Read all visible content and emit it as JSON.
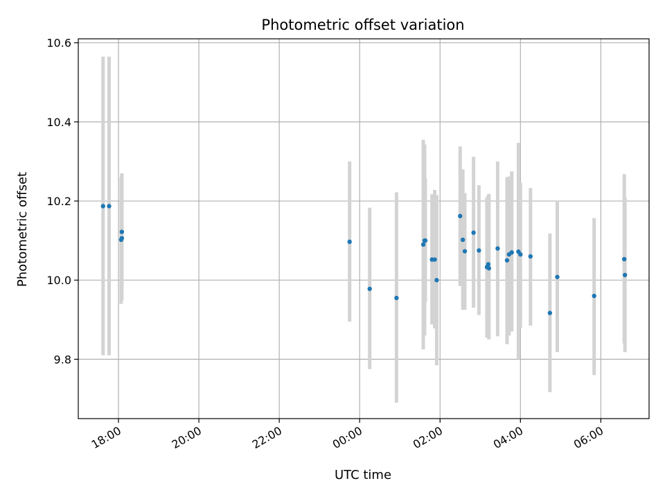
{
  "chart_data": {
    "type": "scatter",
    "title": "Photometric offset variation",
    "xlabel": "UTC time",
    "ylabel": "Photometric offset",
    "xlim": [
      "17:00",
      "07:12"
    ],
    "ylim": [
      9.65,
      10.61
    ],
    "x_ticks": [
      "18:00",
      "20:00",
      "22:00",
      "00:00",
      "02:00",
      "04:00",
      "06:00"
    ],
    "y_ticks": [
      "9.8",
      "10.0",
      "10.2",
      "10.4",
      "10.6"
    ],
    "grid": true,
    "x_tick_rotation": 30,
    "colors": {
      "point": "#1f77b4",
      "errorbar": "#d3d3d3",
      "grid": "#b0b0b0"
    },
    "points": [
      {
        "x": "17:37",
        "y": 10.187,
        "ylow": 9.81,
        "yhigh": 10.565
      },
      {
        "x": "17:46",
        "y": 10.187,
        "ylow": 9.81,
        "yhigh": 10.565
      },
      {
        "x": "18:04",
        "y": 10.102,
        "ylow": 9.94,
        "yhigh": 10.26
      },
      {
        "x": "18:05",
        "y": 10.122,
        "ylow": 9.97,
        "yhigh": 10.27
      },
      {
        "x": "18:05",
        "y": 10.106,
        "ylow": 9.95,
        "yhigh": 10.27
      },
      {
        "x": "23:45",
        "y": 10.097,
        "ylow": 9.895,
        "yhigh": 10.3
      },
      {
        "x": "00:15",
        "y": 9.978,
        "ylow": 9.775,
        "yhigh": 10.183
      },
      {
        "x": "00:55",
        "y": 9.955,
        "ylow": 9.69,
        "yhigh": 10.222
      },
      {
        "x": "01:35",
        "y": 10.09,
        "ylow": 9.825,
        "yhigh": 10.355
      },
      {
        "x": "01:37",
        "y": 10.1,
        "ylow": 9.86,
        "yhigh": 10.343
      },
      {
        "x": "01:38",
        "y": 10.1,
        "ylow": 9.945,
        "yhigh": 10.257
      },
      {
        "x": "01:48",
        "y": 10.052,
        "ylow": 9.888,
        "yhigh": 10.217
      },
      {
        "x": "01:52",
        "y": 10.052,
        "ylow": 9.878,
        "yhigh": 10.228
      },
      {
        "x": "01:55",
        "y": 10.0,
        "ylow": 9.785,
        "yhigh": 10.215
      },
      {
        "x": "02:30",
        "y": 10.162,
        "ylow": 9.985,
        "yhigh": 10.338
      },
      {
        "x": "02:34",
        "y": 10.102,
        "ylow": 9.925,
        "yhigh": 10.28
      },
      {
        "x": "02:37",
        "y": 10.073,
        "ylow": 9.925,
        "yhigh": 10.22
      },
      {
        "x": "02:50",
        "y": 10.12,
        "ylow": 9.93,
        "yhigh": 10.312
      },
      {
        "x": "02:58",
        "y": 10.075,
        "ylow": 9.912,
        "yhigh": 10.24
      },
      {
        "x": "03:10",
        "y": 10.033,
        "ylow": 9.855,
        "yhigh": 10.21
      },
      {
        "x": "03:12",
        "y": 10.04,
        "ylow": 9.865,
        "yhigh": 10.215
      },
      {
        "x": "03:13",
        "y": 10.03,
        "ylow": 9.85,
        "yhigh": 10.218
      },
      {
        "x": "03:26",
        "y": 10.08,
        "ylow": 9.858,
        "yhigh": 10.3
      },
      {
        "x": "03:40",
        "y": 10.05,
        "ylow": 9.838,
        "yhigh": 10.26
      },
      {
        "x": "03:43",
        "y": 10.065,
        "ylow": 9.86,
        "yhigh": 10.262
      },
      {
        "x": "03:47",
        "y": 10.07,
        "ylow": 9.87,
        "yhigh": 10.275
      },
      {
        "x": "03:57",
        "y": 10.072,
        "ylow": 9.8,
        "yhigh": 10.347
      },
      {
        "x": "04:00",
        "y": 10.065,
        "ylow": 9.88,
        "yhigh": 10.246
      },
      {
        "x": "04:15",
        "y": 10.06,
        "ylow": 9.885,
        "yhigh": 10.233
      },
      {
        "x": "04:44",
        "y": 9.917,
        "ylow": 9.717,
        "yhigh": 10.118
      },
      {
        "x": "04:55",
        "y": 10.008,
        "ylow": 9.818,
        "yhigh": 10.2
      },
      {
        "x": "05:50",
        "y": 9.96,
        "ylow": 9.76,
        "yhigh": 10.157
      },
      {
        "x": "06:35",
        "y": 10.053,
        "ylow": 9.84,
        "yhigh": 10.268
      },
      {
        "x": "06:36",
        "y": 10.013,
        "ylow": 9.818,
        "yhigh": 10.21
      }
    ]
  }
}
